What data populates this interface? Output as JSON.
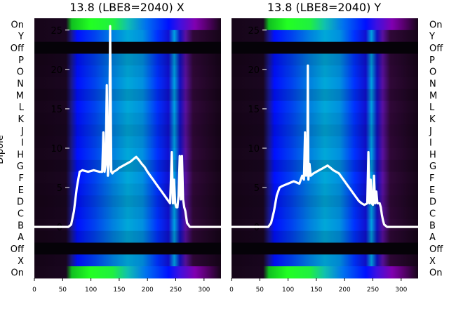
{
  "chart_data": [
    {
      "type": "heatmap",
      "title": "13.8 (LBE8=2040) X",
      "ylabel": "Dipole",
      "categories": [
        "On",
        "Y",
        "Off",
        "P",
        "O",
        "N",
        "M",
        "L",
        "K",
        "J",
        "I",
        "H",
        "G",
        "F",
        "E",
        "D",
        "C",
        "B",
        "A",
        "Off",
        "X",
        "On"
      ],
      "x_ticks": [
        0,
        50,
        100,
        150,
        200,
        250,
        300
      ],
      "y_ticks": [
        0,
        5,
        10,
        15,
        20,
        25
      ],
      "xlim": [
        0,
        330
      ],
      "ylim": [
        -6.5,
        26.5
      ],
      "overlay_line": {
        "x": [
          0,
          60,
          65,
          70,
          75,
          80,
          85,
          95,
          105,
          115,
          120,
          122,
          124,
          126,
          128,
          130,
          132,
          134,
          136,
          138,
          140,
          145,
          150,
          155,
          160,
          165,
          170,
          175,
          180,
          185,
          190,
          195,
          200,
          205,
          210,
          215,
          220,
          225,
          230,
          235,
          240,
          243,
          245,
          247,
          249,
          251,
          253,
          255,
          257,
          259,
          261,
          263,
          265,
          267,
          270,
          275,
          290,
          330
        ],
        "y": [
          0,
          0,
          0.3,
          2,
          5,
          7,
          7.2,
          7,
          7.2,
          7,
          7,
          12,
          7,
          8,
          18,
          6.5,
          8,
          25.5,
          7,
          6.8,
          7,
          7.2,
          7.5,
          7.7,
          7.9,
          8.1,
          8.3,
          8.6,
          8.9,
          8.5,
          8,
          7.6,
          7,
          6.5,
          6,
          5.5,
          5,
          4.5,
          4,
          3.5,
          3,
          9.5,
          3,
          6,
          3,
          2.5,
          2.5,
          4,
          9,
          3.5,
          9,
          3.5,
          2.5,
          2,
          0.5,
          0,
          0,
          0
        ]
      }
    },
    {
      "type": "heatmap",
      "title": "13.8 (LBE8=2040) Y",
      "categories": [
        "On",
        "Y",
        "Off",
        "P",
        "O",
        "N",
        "M",
        "L",
        "K",
        "J",
        "I",
        "H",
        "G",
        "F",
        "E",
        "D",
        "C",
        "B",
        "A",
        "Off",
        "X",
        "On"
      ],
      "x_ticks": [
        0,
        50,
        100,
        150,
        200,
        250,
        300
      ],
      "y_ticks": [
        0,
        5,
        10,
        15,
        20,
        25
      ],
      "xlim": [
        0,
        330
      ],
      "ylim": [
        -6.5,
        26.5
      ],
      "overlay_line": {
        "x": [
          0,
          65,
          70,
          75,
          80,
          85,
          90,
          100,
          110,
          120,
          125,
          128,
          130,
          132,
          134,
          135,
          136,
          138,
          140,
          145,
          150,
          155,
          160,
          165,
          170,
          175,
          180,
          185,
          190,
          195,
          200,
          205,
          210,
          215,
          220,
          225,
          230,
          235,
          240,
          242,
          244,
          246,
          248,
          250,
          252,
          254,
          256,
          258,
          260,
          262,
          264,
          266,
          268,
          270,
          275,
          290,
          330
        ],
        "y": [
          0,
          0,
          0.5,
          2,
          4,
          5,
          5.2,
          5.5,
          5.8,
          5.5,
          6.5,
          6,
          12,
          6.5,
          7,
          20.5,
          6,
          8,
          6.5,
          6.8,
          7,
          7.2,
          7.4,
          7.6,
          7.8,
          7.5,
          7.2,
          7,
          6.8,
          6.3,
          5.8,
          5.3,
          4.8,
          4.3,
          3.8,
          3.3,
          3,
          2.8,
          3,
          9.5,
          3,
          6,
          3,
          2.8,
          6.5,
          3,
          4.5,
          3,
          3,
          3,
          2.5,
          1.5,
          0.8,
          0.3,
          0,
          0,
          0
        ]
      }
    }
  ],
  "colors": {
    "background_dark": "#100414",
    "band_dark": "#050208",
    "line": "#ffffff",
    "green": "#22ff22",
    "blue": "#0000ff",
    "teal": "#00a0d0",
    "magenta": "#8000a8"
  }
}
